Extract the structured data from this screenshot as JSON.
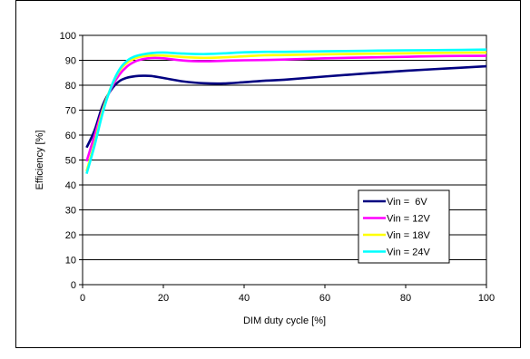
{
  "chart_data": {
    "type": "line",
    "xlabel": "DIM duty cycle [%]",
    "ylabel": "Efficiency [%]",
    "xlim": [
      0,
      100
    ],
    "ylim": [
      0,
      100
    ],
    "xticks": [
      0,
      20,
      40,
      60,
      80,
      100
    ],
    "yticks": [
      0,
      10,
      20,
      30,
      40,
      50,
      60,
      70,
      80,
      90,
      100
    ],
    "grid": "horizontal",
    "legend_position": "right-middle",
    "series": [
      {
        "name": "Vin =  6V",
        "color": "#000080",
        "x": [
          1,
          3,
          5,
          7,
          9,
          11,
          13,
          15,
          17,
          20,
          25,
          30,
          35,
          40,
          45,
          50,
          60,
          70,
          80,
          90,
          100
        ],
        "y": [
          55,
          62,
          72,
          78,
          81.5,
          83,
          83.6,
          83.8,
          83.7,
          82.9,
          81.5,
          80.8,
          80.7,
          81.2,
          81.8,
          82.2,
          83.5,
          84.7,
          85.8,
          86.7,
          87.6
        ]
      },
      {
        "name": "Vin = 12V",
        "color": "#ff00ff",
        "x": [
          1,
          3,
          5,
          7,
          9,
          11,
          13,
          15,
          17,
          20,
          25,
          30,
          35,
          40,
          45,
          50,
          60,
          70,
          80,
          90,
          100
        ],
        "y": [
          49.5,
          60,
          70.5,
          78.5,
          84,
          87.5,
          89.5,
          90.5,
          90.9,
          90.8,
          89.9,
          89.6,
          89.8,
          90,
          90.1,
          90.3,
          90.8,
          91.1,
          91.4,
          91.7,
          91.8
        ]
      },
      {
        "name": "Vin = 18V",
        "color": "#ffff00",
        "x": [
          1,
          3,
          5,
          7,
          9,
          11,
          13,
          15,
          17,
          20,
          25,
          30,
          35,
          40,
          45,
          50,
          60,
          70,
          80,
          90,
          100
        ],
        "y": [
          45.5,
          57,
          70,
          79,
          85.5,
          89,
          90.8,
          91.6,
          91.9,
          91.9,
          91.3,
          91,
          91.2,
          91.6,
          92,
          92.1,
          92.4,
          92.6,
          92.8,
          93,
          93.1
        ]
      },
      {
        "name": "Vin = 24V",
        "color": "#00ffff",
        "x": [
          1,
          3,
          5,
          7,
          9,
          11,
          13,
          15,
          17,
          20,
          25,
          30,
          35,
          40,
          45,
          50,
          60,
          70,
          80,
          90,
          100
        ],
        "y": [
          44.5,
          56,
          69,
          79,
          86,
          89.8,
          91.6,
          92.4,
          92.9,
          93.1,
          92.7,
          92.5,
          92.8,
          93.2,
          93.4,
          93.4,
          93.6,
          93.8,
          94,
          94.1,
          94.3
        ]
      }
    ]
  }
}
